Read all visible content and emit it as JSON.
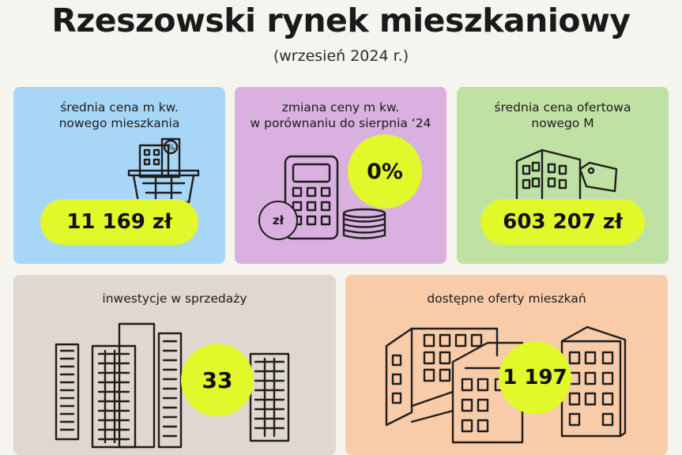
{
  "header": {
    "title": "Rzeszowski rynek mieszkaniowy",
    "subtitle": "(wrzesień 2024 r.)"
  },
  "cards": {
    "avg_price": {
      "label_line1": "średnia cena m kw.",
      "label_line2": "nowego mieszkania",
      "value": "11 169 zł",
      "color": "#a8d6f7"
    },
    "price_change": {
      "label_line1": "zmiana ceny m kw.",
      "label_line2": "w porównaniu do sierpnia ‘24",
      "value": "0%",
      "coin_label": "zł",
      "color": "#d9b0df"
    },
    "offer_price": {
      "label_line1": "średnia cena ofertowa",
      "label_line2": "nowego M",
      "value": "603 207 zł",
      "color": "#bfe2a4"
    },
    "investments": {
      "label": "inwestycje w sprzedaży",
      "value": "33",
      "color": "#e0d7ce"
    },
    "offers": {
      "label": "dostępne oferty mieszkań",
      "value": "1 197",
      "color": "#f8cba9"
    }
  },
  "accent_color": "#e1f82a",
  "icons": [
    "basket-building-icon",
    "calculator-icon",
    "coin-icon",
    "coin-stack-icon",
    "building-tag-icon",
    "skyscrapers-icon",
    "apartment-blocks-icon"
  ]
}
